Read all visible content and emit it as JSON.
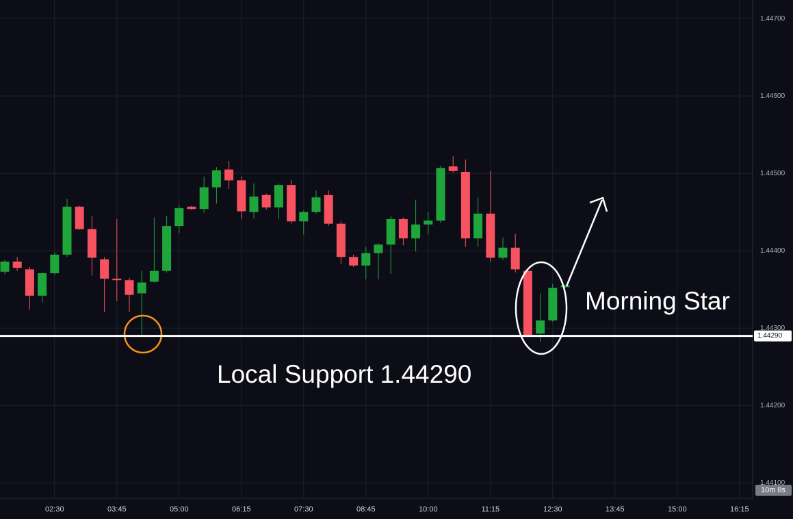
{
  "chart_data": {
    "type": "candlestick",
    "categories": [
      null,
      null,
      null,
      null,
      "02:30",
      null,
      null,
      null,
      null,
      "03:45",
      null,
      null,
      null,
      null,
      "05:00",
      null,
      null,
      null,
      null,
      "06:15",
      null,
      null,
      null,
      null,
      "07:30",
      null,
      null,
      null,
      null,
      "08:45",
      null,
      null,
      null,
      null,
      "10:00",
      null,
      null,
      null,
      null,
      "11:15",
      null,
      null,
      null,
      null,
      "12:30",
      null,
      null,
      null,
      null,
      "13:45",
      null,
      null,
      null,
      null,
      "15:00",
      null,
      null,
      null,
      null,
      "16:15"
    ],
    "open": [
      1.44373,
      1.44386,
      1.44376,
      1.44342,
      1.44371,
      1.44395,
      1.44457,
      1.44428,
      1.44389,
      1.44364,
      1.44362,
      1.44345,
      1.4436,
      1.44374,
      1.44432,
      1.44457,
      1.44454,
      1.44482,
      1.44505,
      1.44491,
      1.4445,
      1.44472,
      1.44456,
      1.44485,
      1.44438,
      1.4445,
      1.44472,
      1.44435,
      1.44392,
      1.44381,
      1.44397,
      1.44408,
      1.44441,
      1.44416,
      1.44434,
      1.44439,
      1.44509,
      1.44502,
      1.44416,
      1.44448,
      1.44391,
      1.44404,
      1.44374,
      1.44293,
      1.4431,
      1.44353,
      null,
      null,
      null,
      null,
      null,
      null,
      null,
      null,
      null,
      null,
      null,
      null,
      null,
      null
    ],
    "high": [
      1.44388,
      1.44392,
      1.44379,
      1.44372,
      1.44398,
      1.44467,
      1.44458,
      1.44445,
      1.44392,
      1.44441,
      1.44365,
      1.44374,
      1.44443,
      1.44445,
      1.44459,
      1.44458,
      1.44496,
      1.44508,
      1.44516,
      1.44496,
      1.44487,
      1.44474,
      1.44487,
      1.44492,
      1.44452,
      1.44478,
      1.44478,
      1.44438,
      1.44395,
      1.44405,
      1.4441,
      1.44445,
      1.44443,
      1.44466,
      1.4445,
      1.4451,
      1.44522,
      1.44518,
      1.44469,
      1.44503,
      1.44417,
      1.44422,
      1.44376,
      1.44345,
      1.44357,
      1.44356,
      null,
      null,
      null,
      null,
      null,
      null,
      null,
      null,
      null,
      null,
      null,
      null,
      null,
      null
    ],
    "low": [
      1.4437,
      1.44374,
      1.44324,
      1.44333,
      1.44369,
      1.44392,
      1.44427,
      1.44368,
      1.44321,
      1.44335,
      1.44321,
      1.4429,
      1.44359,
      1.44372,
      1.44423,
      1.44453,
      1.44449,
      1.44461,
      1.4448,
      1.44441,
      1.44442,
      1.44453,
      1.44441,
      1.44435,
      1.44421,
      1.44448,
      1.44432,
      1.44383,
      1.44379,
      1.44363,
      1.44363,
      1.4437,
      1.44407,
      1.44399,
      1.44421,
      1.44436,
      1.44501,
      1.44405,
      1.44405,
      1.44386,
      1.44388,
      1.44372,
      1.44288,
      1.44282,
      1.44308,
      1.44352,
      null,
      null,
      null,
      null,
      null,
      null,
      null,
      null,
      null,
      null,
      null,
      null,
      null,
      null
    ],
    "close": [
      1.44386,
      1.44378,
      1.44342,
      1.44371,
      1.44395,
      1.44457,
      1.44428,
      1.44391,
      1.44364,
      1.44362,
      1.44343,
      1.44359,
      1.44374,
      1.44432,
      1.44455,
      1.44454,
      1.44482,
      1.44504,
      1.44491,
      1.44451,
      1.4447,
      1.44456,
      1.44485,
      1.44438,
      1.4445,
      1.44469,
      1.44435,
      1.44392,
      1.44381,
      1.44397,
      1.44408,
      1.44441,
      1.44416,
      1.44434,
      1.44439,
      1.44507,
      1.44503,
      1.44416,
      1.44448,
      1.44391,
      1.44404,
      1.44376,
      1.4429,
      1.4431,
      1.44352,
      1.44355,
      null,
      null,
      null,
      null,
      null,
      null,
      null,
      null,
      null,
      null,
      null,
      null,
      null,
      null
    ],
    "up_color": "#1fa63a",
    "down_color": "#f7525f",
    "ylim": [
      1.4408,
      1.44724
    ],
    "yticks": [
      {
        "value": 1.441,
        "label": "1.44100"
      },
      {
        "value": 1.442,
        "label": "1.44200"
      },
      {
        "value": 1.443,
        "label": "1.44300"
      },
      {
        "value": 1.444,
        "label": "1.44400"
      },
      {
        "value": 1.445,
        "label": "1.44500"
      },
      {
        "value": 1.446,
        "label": "1.44600"
      },
      {
        "value": 1.447,
        "label": "1.44700"
      }
    ],
    "grid": true,
    "support": {
      "value": 1.4429,
      "label": "1.44290"
    },
    "countdown": "10m 8s",
    "annotations": [
      "Morning Star",
      "Local Support 1.44290"
    ]
  }
}
